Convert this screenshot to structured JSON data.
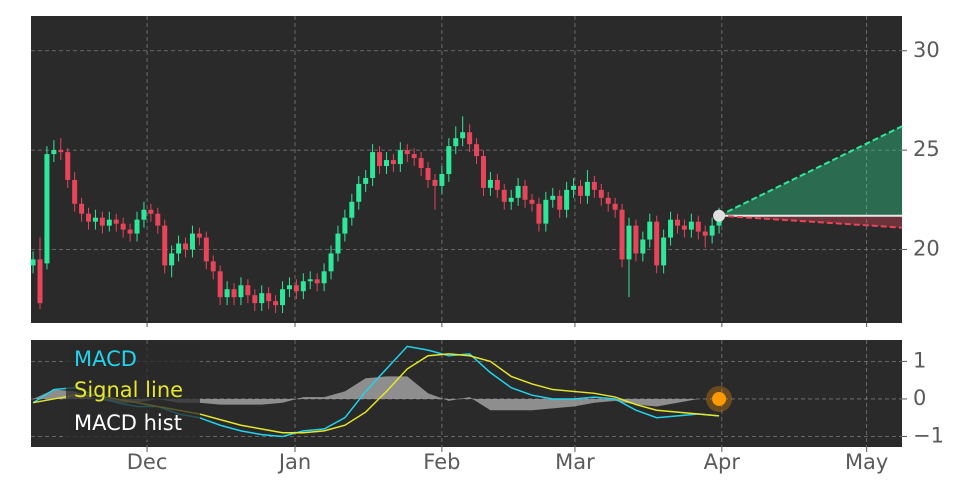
{
  "chart_data": [
    {
      "type": "candlestick",
      "xlim": [
        -0.3,
        125.4
      ],
      "ylim": [
        16.3,
        31.75
      ],
      "yticks": [
        20,
        25,
        30
      ],
      "grid": true,
      "up_color": "#2ee89a",
      "down_color": "#e8445a",
      "open": [
        19.2,
        19.5,
        19.3,
        24.8,
        25.0,
        24.9,
        23.5,
        22.3,
        21.8,
        21.4,
        21.6,
        21.2,
        21.5,
        21.3,
        21.0,
        20.8,
        21.5,
        22.0,
        21.8,
        21.2,
        19.2,
        19.8,
        20.3,
        20.0,
        20.8,
        20.6,
        19.4,
        18.9,
        17.6,
        18.0,
        17.6,
        18.2,
        17.7,
        17.3,
        17.8,
        17.4,
        17.2,
        18.0,
        18.2,
        17.9,
        18.4,
        18.5,
        18.3,
        18.9,
        19.8,
        20.8,
        21.6,
        22.4,
        23.3,
        23.6,
        24.9,
        24.2,
        24.5,
        24.3,
        25.0,
        24.8,
        24.6,
        24.1,
        23.5,
        23.2,
        23.8,
        25.2,
        25.6,
        25.9,
        25.3,
        24.7,
        23.1,
        23.5,
        23.0,
        22.4,
        22.6,
        23.2,
        22.5,
        22.3,
        21.3,
        22.5,
        22.7,
        22.0,
        23.0,
        23.2,
        22.7,
        23.4,
        23.0,
        22.6,
        22.3,
        22.0,
        19.5,
        21.2,
        19.8,
        20.5,
        21.4,
        19.2,
        20.6,
        21.5,
        21.2,
        21.0,
        21.4,
        20.9,
        20.7,
        21.2
      ],
      "high": [
        19.9,
        20.6,
        25.2,
        25.5,
        25.6,
        25.1,
        23.9,
        22.6,
        22.1,
        22.0,
        21.9,
        21.9,
        21.8,
        21.6,
        21.3,
        21.9,
        22.4,
        22.3,
        22.1,
        21.5,
        20.2,
        20.7,
        20.6,
        21.2,
        21.1,
        20.9,
        19.7,
        19.2,
        18.4,
        18.3,
        18.6,
        18.5,
        18.0,
        18.2,
        18.1,
        17.7,
        18.4,
        18.6,
        18.5,
        18.8,
        18.9,
        18.8,
        19.3,
        20.2,
        21.2,
        22.0,
        22.8,
        23.7,
        24.0,
        25.3,
        25.2,
        24.9,
        24.8,
        25.4,
        25.3,
        25.1,
        24.9,
        24.4,
        23.8,
        24.2,
        25.6,
        26.2,
        26.7,
        26.3,
        25.6,
        25.0,
        23.9,
        23.8,
        23.3,
        23.0,
        23.6,
        23.5,
        22.8,
        22.6,
        22.9,
        23.1,
        23.0,
        23.4,
        23.6,
        23.5,
        24.0,
        23.7,
        23.3,
        22.9,
        22.6,
        22.3,
        21.6,
        21.5,
        20.9,
        21.8,
        21.7,
        21.0,
        21.9,
        21.8,
        21.5,
        21.8,
        21.7,
        21.2,
        21.6,
        22.1
      ],
      "low": [
        18.8,
        17.0,
        19.0,
        24.4,
        24.5,
        23.1,
        21.9,
        21.4,
        21.0,
        21.0,
        20.8,
        20.9,
        20.9,
        20.6,
        20.4,
        20.4,
        21.1,
        21.4,
        20.8,
        18.8,
        18.6,
        19.4,
        19.6,
        19.6,
        20.2,
        19.0,
        18.5,
        17.2,
        17.2,
        17.2,
        17.2,
        17.3,
        16.9,
        16.9,
        17.0,
        16.8,
        16.8,
        17.6,
        17.5,
        17.5,
        18.0,
        17.9,
        17.9,
        18.5,
        19.4,
        20.4,
        21.2,
        22.0,
        22.9,
        23.2,
        23.8,
        23.8,
        23.9,
        23.9,
        24.4,
        24.2,
        23.7,
        23.1,
        22.0,
        22.8,
        23.4,
        24.8,
        25.2,
        24.9,
        24.3,
        22.7,
        22.7,
        22.6,
        22.0,
        22.0,
        22.2,
        22.1,
        21.9,
        20.9,
        20.9,
        22.1,
        21.6,
        21.6,
        22.6,
        22.3,
        22.3,
        22.6,
        22.2,
        21.9,
        21.6,
        19.1,
        17.6,
        19.4,
        19.4,
        20.1,
        18.8,
        18.8,
        20.2,
        20.8,
        20.6,
        20.6,
        20.5,
        20.1,
        20.3,
        20.8
      ],
      "close": [
        19.5,
        17.3,
        24.8,
        25.0,
        24.9,
        23.5,
        22.3,
        21.8,
        21.4,
        21.6,
        21.2,
        21.5,
        21.3,
        21.0,
        20.8,
        21.5,
        22.0,
        21.8,
        21.2,
        19.2,
        19.8,
        20.3,
        20.0,
        20.8,
        20.6,
        19.4,
        18.9,
        17.6,
        18.0,
        17.6,
        18.2,
        17.7,
        17.3,
        17.8,
        17.4,
        17.2,
        18.0,
        18.2,
        17.9,
        18.4,
        18.5,
        18.3,
        18.9,
        19.8,
        20.8,
        21.6,
        22.4,
        23.3,
        23.6,
        24.9,
        24.2,
        24.5,
        24.3,
        25.0,
        24.8,
        24.6,
        24.1,
        23.5,
        23.2,
        23.8,
        25.2,
        25.6,
        25.9,
        25.3,
        24.7,
        23.1,
        23.5,
        23.0,
        22.4,
        22.6,
        23.2,
        22.5,
        22.3,
        21.3,
        22.5,
        22.7,
        22.0,
        23.0,
        23.2,
        22.7,
        23.4,
        23.0,
        22.6,
        22.3,
        22.0,
        19.5,
        21.2,
        19.8,
        20.5,
        21.4,
        19.2,
        20.6,
        21.5,
        21.2,
        21.0,
        21.4,
        20.9,
        20.7,
        21.2,
        21.7
      ],
      "forecast": {
        "x": [
          99,
          125.4
        ],
        "upper": [
          21.7,
          26.2
        ],
        "lower": [
          21.7,
          21.1
        ],
        "upper_color": "#2ee89a",
        "lower_color": "#e8445a"
      }
    },
    {
      "type": "macd",
      "xlim": [
        -0.3,
        125.4
      ],
      "ylim": [
        -1.28,
        1.57
      ],
      "yticks": [
        {
          "value": -1,
          "label": "−1"
        },
        0,
        1
      ],
      "xticks": [
        {
          "value": 16.45,
          "label": "Dec"
        },
        {
          "value": 37.8,
          "label": "Jan"
        },
        {
          "value": 59,
          "label": "Feb"
        },
        {
          "value": 78.2,
          "label": "Mar"
        },
        {
          "value": 99.4,
          "label": "Apr"
        },
        {
          "value": 120.3,
          "label": "May"
        }
      ],
      "grid": true,
      "x": [
        0,
        3,
        6,
        9,
        12,
        15,
        18,
        21,
        24,
        27,
        30,
        33,
        36,
        39,
        42,
        45,
        48,
        51,
        54,
        57,
        60,
        63,
        66,
        69,
        72,
        75,
        78,
        81,
        84,
        87,
        90,
        93,
        96,
        99
      ],
      "series": [
        {
          "name": "MACD",
          "color": "#22d3ee",
          "values": [
            -0.1,
            0.25,
            0.3,
            0.1,
            -0.1,
            -0.2,
            -0.2,
            -0.4,
            -0.5,
            -0.7,
            -0.85,
            -0.95,
            -1.0,
            -0.85,
            -0.8,
            -0.5,
            0.2,
            0.8,
            1.4,
            1.3,
            1.15,
            1.2,
            0.7,
            0.3,
            0.1,
            0.0,
            0.0,
            0.05,
            0.0,
            -0.3,
            -0.5,
            -0.45,
            -0.4,
            -0.45
          ]
        },
        {
          "name": "Signal line",
          "color": "#e6e62a",
          "values": [
            -0.1,
            0.0,
            0.1,
            0.1,
            0.0,
            -0.1,
            -0.2,
            -0.3,
            -0.4,
            -0.55,
            -0.7,
            -0.8,
            -0.9,
            -0.9,
            -0.85,
            -0.7,
            -0.35,
            0.2,
            0.8,
            1.15,
            1.2,
            1.15,
            1.0,
            0.6,
            0.4,
            0.25,
            0.2,
            0.15,
            0.05,
            -0.15,
            -0.3,
            -0.35,
            -0.4,
            -0.45
          ]
        },
        {
          "name": "MACD hist",
          "color": "#a0a0a0",
          "values": [
            0.0,
            0.25,
            0.2,
            0.0,
            -0.1,
            -0.1,
            0.0,
            -0.1,
            -0.1,
            -0.15,
            -0.15,
            -0.15,
            -0.1,
            0.05,
            0.05,
            0.2,
            0.55,
            0.6,
            0.6,
            0.15,
            -0.05,
            0.05,
            -0.3,
            -0.3,
            -0.3,
            -0.25,
            -0.2,
            -0.1,
            -0.05,
            -0.15,
            -0.2,
            -0.1,
            0.0,
            0.0
          ]
        }
      ],
      "marker": {
        "x": 99,
        "value": 0,
        "color": "#ff9900"
      }
    }
  ]
}
